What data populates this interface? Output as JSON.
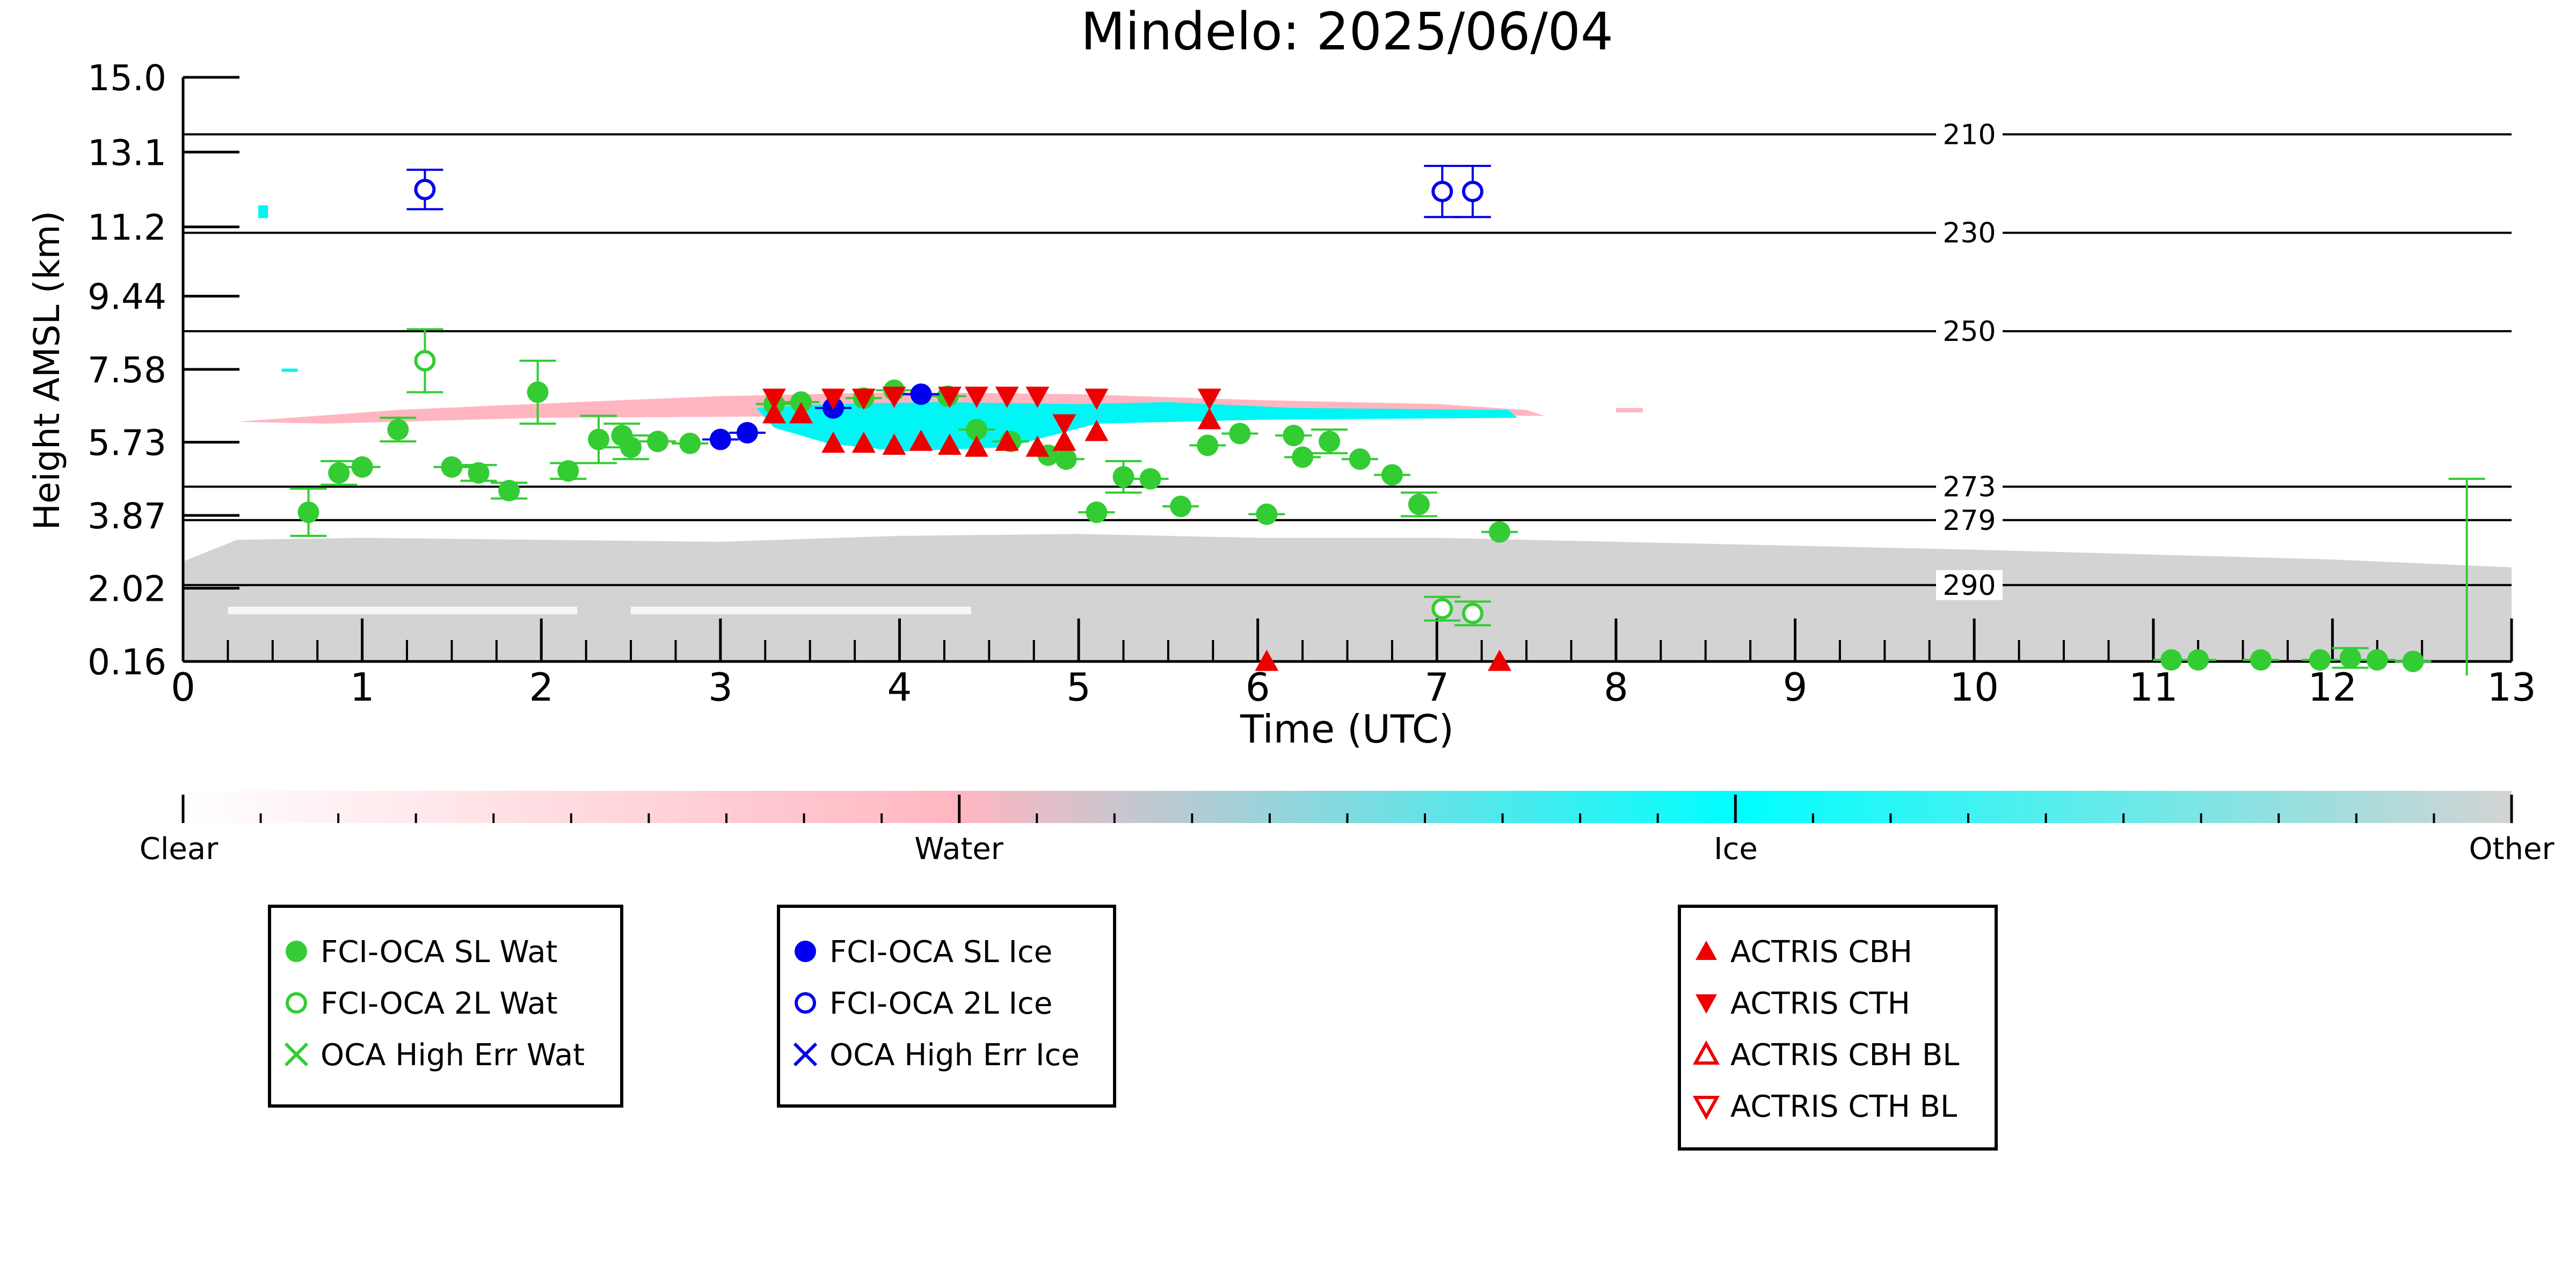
{
  "chart_data": {
    "type": "scatter",
    "title": "Mindelo: 2025/06/04",
    "xlabel": "Time (UTC)",
    "ylabel": "Height AMSL (km)",
    "xlim": [
      0,
      13
    ],
    "ylim": [
      0.16,
      15.0
    ],
    "xticks": [
      "0",
      "1",
      "2",
      "3",
      "4",
      "5",
      "6",
      "7",
      "8",
      "9",
      "10",
      "11",
      "12",
      "13"
    ],
    "yticks": [
      "0.16",
      "2.02",
      "3.87",
      "5.73",
      "7.58",
      "9.44",
      "11.2",
      "13.1",
      "15.0"
    ],
    "ytick_values": [
      0.16,
      2.02,
      3.87,
      5.73,
      7.58,
      9.44,
      11.2,
      13.1,
      15.0
    ],
    "isotherms": [
      {
        "label": "210",
        "y": 13.55
      },
      {
        "label": "230",
        "y": 11.05
      },
      {
        "label": "250",
        "y": 8.55
      },
      {
        "label": "273",
        "y": 4.6
      },
      {
        "label": "279",
        "y": 3.75
      },
      {
        "label": "290",
        "y": 2.1
      }
    ],
    "colorbar": {
      "labels": [
        "Clear",
        "Water",
        "Ice",
        "Other"
      ],
      "colors": [
        "#ffffff",
        "#ffb6c1",
        "#00ffff",
        "#d3d3d3"
      ]
    },
    "colors": {
      "water": "#33cc33",
      "ice": "#0000ee",
      "actris": "#ee0000",
      "other_bg": "#d3d3d3",
      "water_bg": "#ffb6c1",
      "ice_bg": "#00f5f5"
    },
    "legends": [
      {
        "entries": [
          {
            "label": "FCI-OCA SL Wat",
            "marker": "filled-circle",
            "color": "#33cc33"
          },
          {
            "label": "FCI-OCA 2L Wat",
            "marker": "open-circle",
            "color": "#33cc33"
          },
          {
            "label": "OCA High Err Wat",
            "marker": "x",
            "color": "#33cc33"
          }
        ]
      },
      {
        "entries": [
          {
            "label": "FCI-OCA SL Ice",
            "marker": "filled-circle",
            "color": "#0000ee"
          },
          {
            "label": "FCI-OCA 2L Ice",
            "marker": "open-circle",
            "color": "#0000ee"
          },
          {
            "label": "OCA High Err Ice",
            "marker": "x",
            "color": "#0000ee"
          }
        ]
      },
      {
        "entries": [
          {
            "label": "ACTRIS CBH",
            "marker": "triangle-up",
            "color": "#ee0000"
          },
          {
            "label": "ACTRIS CTH",
            "marker": "triangle-down",
            "color": "#ee0000"
          },
          {
            "label": "ACTRIS CBH BL",
            "marker": "open-triangle-up",
            "color": "#ee0000"
          },
          {
            "label": "ACTRIS CTH BL",
            "marker": "open-triangle-down",
            "color": "#ee0000"
          }
        ]
      }
    ],
    "series": [
      {
        "name": "FCI-OCA SL Wat",
        "marker": "filled-circle",
        "color": "#33cc33",
        "points": [
          {
            "x": 0.7,
            "y": 3.95,
            "err": 0.6
          },
          {
            "x": 0.87,
            "y": 4.95,
            "err": 0.3
          },
          {
            "x": 1.0,
            "y": 5.1,
            "err": 0.0
          },
          {
            "x": 1.2,
            "y": 6.05,
            "err": 0.3
          },
          {
            "x": 1.5,
            "y": 5.1,
            "err": 0.0
          },
          {
            "x": 1.65,
            "y": 4.95,
            "err": 0.2
          },
          {
            "x": 1.82,
            "y": 4.5,
            "err": 0.2
          },
          {
            "x": 1.98,
            "y": 7.0,
            "err": 0.8
          },
          {
            "x": 2.15,
            "y": 5.0,
            "err": 0.2
          },
          {
            "x": 2.32,
            "y": 5.8,
            "err": 0.6
          },
          {
            "x": 2.45,
            "y": 5.9,
            "err": 0.3
          },
          {
            "x": 2.5,
            "y": 5.6,
            "err": 0.3
          },
          {
            "x": 2.65,
            "y": 5.75,
            "err": 0.0
          },
          {
            "x": 2.83,
            "y": 5.7,
            "err": 0.0
          },
          {
            "x": 3.3,
            "y": 6.7,
            "err": 0.0
          },
          {
            "x": 3.45,
            "y": 6.75,
            "err": 0.0
          },
          {
            "x": 3.8,
            "y": 6.85,
            "err": 0.0
          },
          {
            "x": 3.97,
            "y": 7.05,
            "err": 0.0
          },
          {
            "x": 4.27,
            "y": 6.9,
            "err": 0.0
          },
          {
            "x": 4.43,
            "y": 6.05,
            "err": 0.0
          },
          {
            "x": 4.62,
            "y": 5.75,
            "err": 0.0
          },
          {
            "x": 4.83,
            "y": 5.4,
            "err": 0.0
          },
          {
            "x": 4.93,
            "y": 5.3,
            "err": 0.0
          },
          {
            "x": 5.1,
            "y": 3.95,
            "err": 0.0
          },
          {
            "x": 5.25,
            "y": 4.85,
            "err": 0.4
          },
          {
            "x": 5.4,
            "y": 4.8,
            "err": 0.0
          },
          {
            "x": 5.57,
            "y": 4.1,
            "err": 0.0
          },
          {
            "x": 5.72,
            "y": 5.65,
            "err": 0.0
          },
          {
            "x": 5.9,
            "y": 5.95,
            "err": 0.0
          },
          {
            "x": 6.05,
            "y": 3.9,
            "err": 0.0
          },
          {
            "x": 6.2,
            "y": 5.9,
            "err": 0.0
          },
          {
            "x": 6.25,
            "y": 5.35,
            "err": 0.0
          },
          {
            "x": 6.4,
            "y": 5.75,
            "err": 0.3
          },
          {
            "x": 6.57,
            "y": 5.3,
            "err": 0.0
          },
          {
            "x": 6.75,
            "y": 4.9,
            "err": 0.0
          },
          {
            "x": 6.9,
            "y": 4.15,
            "err": 0.3
          },
          {
            "x": 7.35,
            "y": 3.45,
            "err": 0.0
          },
          {
            "x": 11.1,
            "y": 0.2,
            "err": 0.0
          },
          {
            "x": 11.25,
            "y": 0.2,
            "err": 0.0
          },
          {
            "x": 11.6,
            "y": 0.2,
            "err": 0.0
          },
          {
            "x": 11.93,
            "y": 0.2,
            "err": 0.0
          },
          {
            "x": 12.1,
            "y": 0.25,
            "err": 0.25
          },
          {
            "x": 12.25,
            "y": 0.2,
            "err": 0.0
          },
          {
            "x": 12.45,
            "y": 0.16,
            "err": 0.0
          }
        ]
      },
      {
        "name": "FCI-OCA 2L Wat",
        "marker": "open-circle",
        "color": "#33cc33",
        "points": [
          {
            "x": 1.35,
            "y": 7.8,
            "err": 0.8
          },
          {
            "x": 7.03,
            "y": 1.5,
            "err": 0.3
          },
          {
            "x": 7.2,
            "y": 1.38,
            "err": 0.3
          }
        ]
      },
      {
        "name": "FCI-OCA SL Ice",
        "marker": "filled-circle",
        "color": "#0000ee",
        "points": [
          {
            "x": 3.0,
            "y": 5.8,
            "err": 0.0
          },
          {
            "x": 3.15,
            "y": 5.97,
            "err": 0.0
          },
          {
            "x": 3.63,
            "y": 6.6,
            "err": 0.0
          },
          {
            "x": 4.12,
            "y": 6.95,
            "err": 0.0
          }
        ]
      },
      {
        "name": "FCI-OCA 2L Ice",
        "marker": "open-circle",
        "color": "#0000ee",
        "points": [
          {
            "x": 1.35,
            "y": 12.15,
            "err": 0.5
          },
          {
            "x": 7.03,
            "y": 12.1,
            "err": 0.65
          },
          {
            "x": 7.2,
            "y": 12.1,
            "err": 0.65
          }
        ]
      },
      {
        "name": "ACTRIS CBH",
        "marker": "triangle-up",
        "color": "#ee0000",
        "points": [
          {
            "x": 3.3,
            "y": 6.45
          },
          {
            "x": 3.45,
            "y": 6.45
          },
          {
            "x": 3.63,
            "y": 5.7
          },
          {
            "x": 3.8,
            "y": 5.7
          },
          {
            "x": 3.97,
            "y": 5.65
          },
          {
            "x": 4.12,
            "y": 5.75
          },
          {
            "x": 4.28,
            "y": 5.65
          },
          {
            "x": 4.43,
            "y": 5.6
          },
          {
            "x": 4.6,
            "y": 5.75
          },
          {
            "x": 4.77,
            "y": 5.6
          },
          {
            "x": 4.92,
            "y": 5.75
          },
          {
            "x": 5.1,
            "y": 6.0
          },
          {
            "x": 5.73,
            "y": 6.3
          },
          {
            "x": 6.05,
            "y": 0.16
          },
          {
            "x": 7.35,
            "y": 0.16
          }
        ]
      },
      {
        "name": "ACTRIS CTH",
        "marker": "triangle-down",
        "color": "#ee0000",
        "points": [
          {
            "x": 3.3,
            "y": 6.85
          },
          {
            "x": 3.63,
            "y": 6.85
          },
          {
            "x": 3.8,
            "y": 6.85
          },
          {
            "x": 3.97,
            "y": 6.9
          },
          {
            "x": 4.28,
            "y": 6.9
          },
          {
            "x": 4.43,
            "y": 6.9
          },
          {
            "x": 4.6,
            "y": 6.9
          },
          {
            "x": 4.77,
            "y": 6.9
          },
          {
            "x": 4.92,
            "y": 6.2
          },
          {
            "x": 5.1,
            "y": 6.85
          },
          {
            "x": 5.73,
            "y": 6.85
          }
        ]
      }
    ],
    "extra_errorbar": {
      "x": 12.75,
      "y": 2.3,
      "err": 2.5
    }
  }
}
